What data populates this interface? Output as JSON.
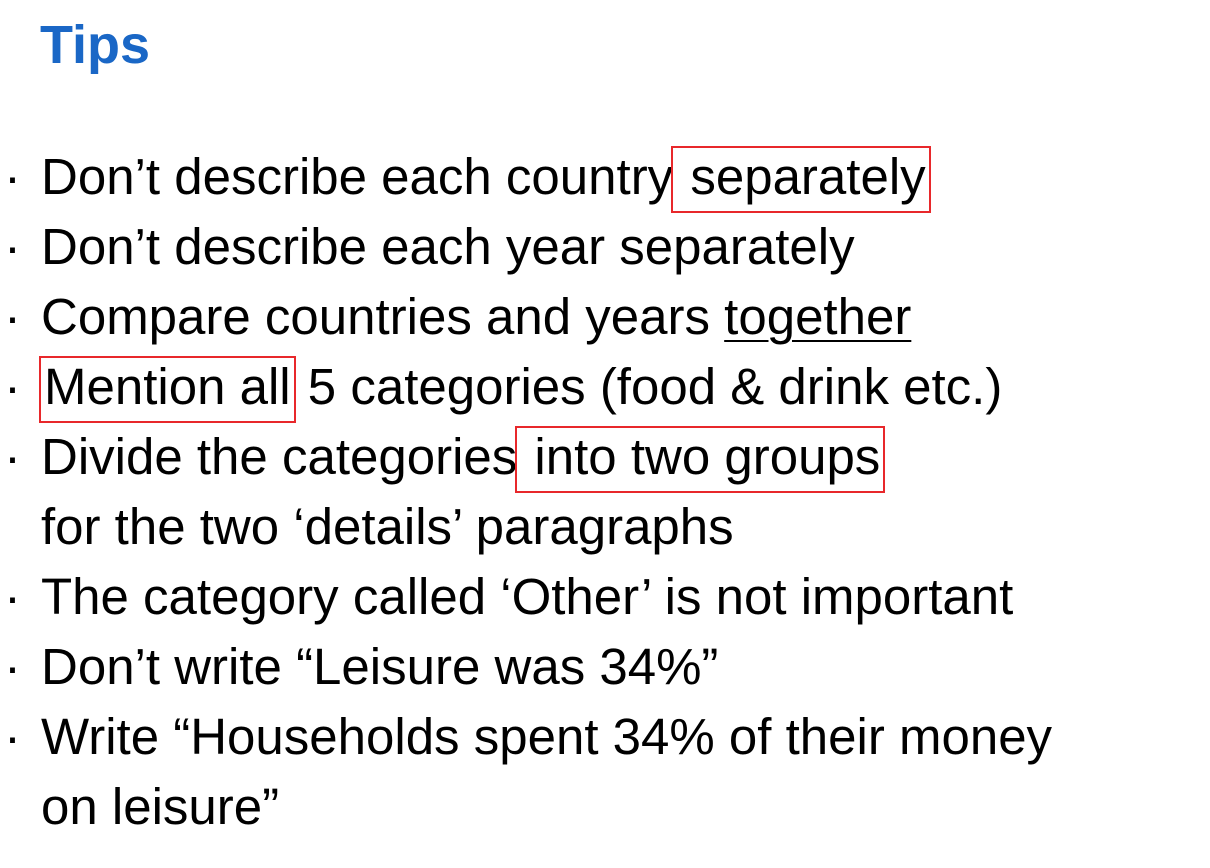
{
  "title": "Tips",
  "colors": {
    "title": "#1a67c6",
    "highlight_box": "#e8282b",
    "text": "#000000"
  },
  "bullet_symbol": "·",
  "bullets": [
    {
      "segments": [
        {
          "text": "Don’t describe each country",
          "style": "plain"
        },
        {
          "text": " separately ",
          "style": "boxed"
        }
      ]
    },
    {
      "segments": [
        {
          "text": "Don’t describe each year separately",
          "style": "plain"
        }
      ]
    },
    {
      "segments": [
        {
          "text": "Compare countries and years ",
          "style": "plain"
        },
        {
          "text": "together",
          "style": "underline"
        }
      ]
    },
    {
      "segments": [
        {
          "text": "Mention all",
          "style": "boxed"
        },
        {
          "text": " 5 categories (food & drink etc.)",
          "style": "plain"
        }
      ]
    },
    {
      "segments": [
        {
          "text": "Divide the categories",
          "style": "plain"
        },
        {
          "text": " into two groups ",
          "style": "boxed"
        }
      ],
      "continuation": "for the two ‘details’ paragraphs"
    },
    {
      "segments": [
        {
          "text": "The category called ‘Other’ is not important",
          "style": "plain"
        }
      ]
    },
    {
      "segments": [
        {
          "text": "Don’t write “Leisure was 34%”",
          "style": "plain"
        }
      ]
    },
    {
      "segments": [
        {
          "text": "Write “Households spent 34% of their money",
          "style": "plain"
        }
      ],
      "continuation": "on leisure”"
    }
  ]
}
